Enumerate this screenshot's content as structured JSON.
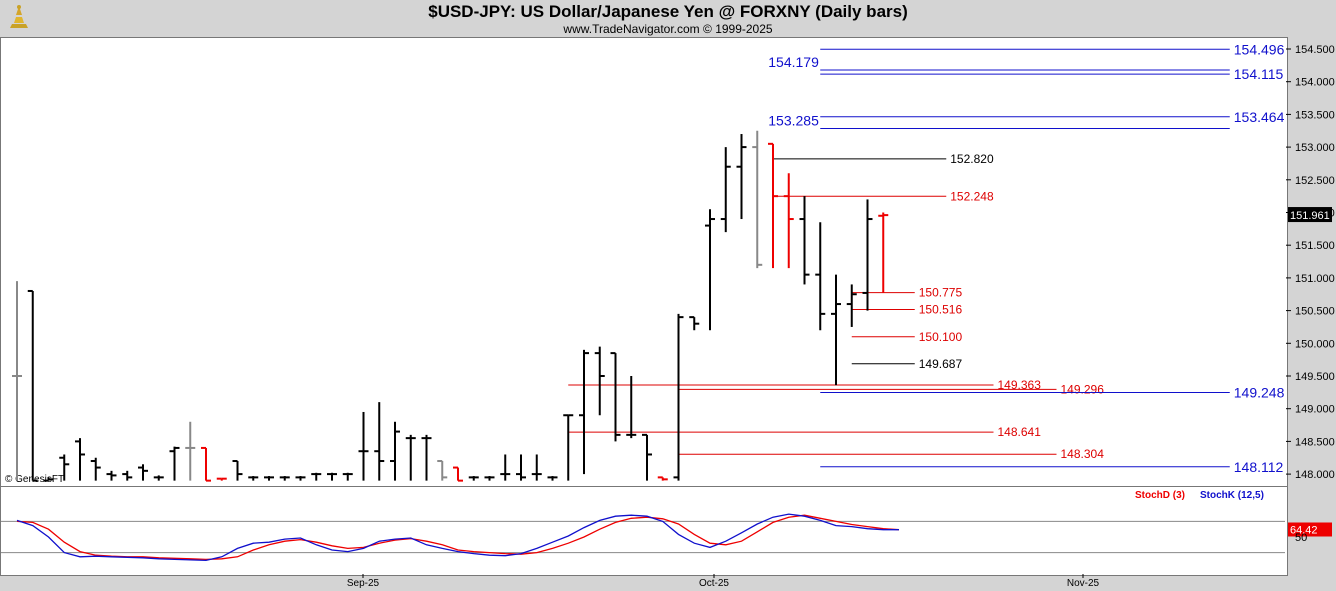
{
  "title": "$USD-JPY:  US Dollar/Japanese Yen @ FORXNY  (Daily bars)",
  "subtitle": "www.TradeNavigator.com © 1999-2025",
  "copyright": "© GenesisFT",
  "colors": {
    "up": "#000000",
    "down": "#ee0000",
    "blue_level": "#1010cc",
    "red_level": "#dd0000",
    "black_level": "#000000",
    "stochD": "#ee0000",
    "stochK": "#1010cc"
  },
  "chart_data": [
    {
      "type": "ohlc",
      "title": "$USD-JPY:  US Dollar/Japanese Yen @ FORXNY  (Daily bars)",
      "ylim": [
        147.9,
        154.7
      ],
      "y_ticks": [
        "154.500",
        "154.000",
        "153.500",
        "153.000",
        "152.500",
        "152.000",
        "151.500",
        "151.000",
        "150.500",
        "150.000",
        "149.500",
        "149.000",
        "148.500",
        "148.000"
      ],
      "x_ticks": [
        "Sep-25",
        "Oct-25",
        "Nov-25"
      ],
      "last_price": "151.961",
      "bars": [
        {
          "o": 149.5,
          "h": 150.95,
          "l": 147.9,
          "c": 149.5,
          "col": "gray"
        },
        {
          "o": 150.8,
          "h": 150.8,
          "l": 147.9,
          "c": 147.9,
          "col": "black"
        },
        {
          "o": 147.9,
          "h": 147.95,
          "l": 147.9,
          "c": 147.92,
          "col": "black"
        },
        {
          "o": 148.25,
          "h": 148.3,
          "l": 147.9,
          "c": 148.15,
          "col": "black"
        },
        {
          "o": 148.5,
          "h": 148.55,
          "l": 147.9,
          "c": 148.3,
          "col": "black"
        },
        {
          "o": 148.2,
          "h": 148.25,
          "l": 147.9,
          "c": 148.1,
          "col": "black"
        },
        {
          "o": 148.0,
          "h": 148.05,
          "l": 147.9,
          "c": 147.98,
          "col": "black"
        },
        {
          "o": 148.0,
          "h": 148.05,
          "l": 147.9,
          "c": 147.95,
          "col": "black"
        },
        {
          "o": 148.1,
          "h": 148.15,
          "l": 147.9,
          "c": 148.05,
          "col": "black"
        },
        {
          "o": 147.95,
          "h": 147.98,
          "l": 147.9,
          "c": 147.95,
          "col": "black"
        },
        {
          "o": 148.35,
          "h": 148.42,
          "l": 147.9,
          "c": 148.4,
          "col": "black"
        },
        {
          "o": 148.4,
          "h": 148.8,
          "l": 147.9,
          "c": 148.4,
          "col": "gray"
        },
        {
          "o": 148.4,
          "h": 148.4,
          "l": 147.9,
          "c": 147.9,
          "col": "red"
        },
        {
          "o": 147.93,
          "h": 147.93,
          "l": 147.9,
          "c": 147.93,
          "col": "red"
        },
        {
          "o": 148.2,
          "h": 148.2,
          "l": 147.9,
          "c": 148.0,
          "col": "black"
        },
        {
          "o": 147.95,
          "h": 147.97,
          "l": 147.9,
          "c": 147.95,
          "col": "black"
        },
        {
          "o": 147.95,
          "h": 147.97,
          "l": 147.9,
          "c": 147.95,
          "col": "black"
        },
        {
          "o": 147.95,
          "h": 147.97,
          "l": 147.9,
          "c": 147.95,
          "col": "black"
        },
        {
          "o": 147.95,
          "h": 147.97,
          "l": 147.9,
          "c": 147.95,
          "col": "black"
        },
        {
          "o": 148.0,
          "h": 148.02,
          "l": 147.9,
          "c": 148.0,
          "col": "black"
        },
        {
          "o": 148.0,
          "h": 148.02,
          "l": 147.9,
          "c": 148.0,
          "col": "black"
        },
        {
          "o": 148.0,
          "h": 148.02,
          "l": 147.9,
          "c": 148.0,
          "col": "black"
        },
        {
          "o": 148.35,
          "h": 148.95,
          "l": 147.9,
          "c": 148.35,
          "col": "black"
        },
        {
          "o": 148.35,
          "h": 149.1,
          "l": 147.9,
          "c": 148.2,
          "col": "black"
        },
        {
          "o": 148.2,
          "h": 148.8,
          "l": 147.9,
          "c": 148.65,
          "col": "black"
        },
        {
          "o": 148.55,
          "h": 148.6,
          "l": 147.9,
          "c": 148.55,
          "col": "black"
        },
        {
          "o": 148.55,
          "h": 148.6,
          "l": 147.9,
          "c": 148.55,
          "col": "black"
        },
        {
          "o": 148.2,
          "h": 148.2,
          "l": 147.9,
          "c": 147.95,
          "col": "gray"
        },
        {
          "o": 148.1,
          "h": 148.1,
          "l": 147.9,
          "c": 147.9,
          "col": "red"
        },
        {
          "o": 147.95,
          "h": 147.97,
          "l": 147.9,
          "c": 147.95,
          "col": "black"
        },
        {
          "o": 147.95,
          "h": 147.97,
          "l": 147.9,
          "c": 147.95,
          "col": "black"
        },
        {
          "o": 148.0,
          "h": 148.3,
          "l": 147.9,
          "c": 148.0,
          "col": "black"
        },
        {
          "o": 148.0,
          "h": 148.3,
          "l": 147.9,
          "c": 147.95,
          "col": "black"
        },
        {
          "o": 148.0,
          "h": 148.3,
          "l": 147.9,
          "c": 148.0,
          "col": "black"
        },
        {
          "o": 147.95,
          "h": 147.97,
          "l": 147.9,
          "c": 147.95,
          "col": "black"
        },
        {
          "o": 148.9,
          "h": 148.9,
          "l": 147.9,
          "c": 148.9,
          "col": "black"
        },
        {
          "o": 148.9,
          "h": 149.9,
          "l": 148.0,
          "c": 149.85,
          "col": "black"
        },
        {
          "o": 149.85,
          "h": 149.95,
          "l": 148.9,
          "c": 149.5,
          "col": "black"
        },
        {
          "o": 149.85,
          "h": 149.85,
          "l": 148.5,
          "c": 148.6,
          "col": "black"
        },
        {
          "o": 148.6,
          "h": 149.5,
          "l": 148.55,
          "c": 148.6,
          "col": "black"
        },
        {
          "o": 148.6,
          "h": 148.6,
          "l": 147.9,
          "c": 148.3,
          "col": "black"
        },
        {
          "o": 147.95,
          "h": 147.95,
          "l": 147.9,
          "c": 147.92,
          "col": "red"
        },
        {
          "o": 147.95,
          "h": 150.45,
          "l": 147.9,
          "c": 150.4,
          "col": "black"
        },
        {
          "o": 150.4,
          "h": 150.4,
          "l": 150.2,
          "c": 150.3,
          "col": "black"
        },
        {
          "o": 151.8,
          "h": 152.05,
          "l": 150.2,
          "c": 151.9,
          "col": "black"
        },
        {
          "o": 151.9,
          "h": 153.0,
          "l": 151.7,
          "c": 152.7,
          "col": "black"
        },
        {
          "o": 152.7,
          "h": 153.2,
          "l": 151.9,
          "c": 153.0,
          "col": "black"
        },
        {
          "o": 153.0,
          "h": 153.25,
          "l": 151.15,
          "c": 151.2,
          "col": "gray"
        },
        {
          "o": 153.05,
          "h": 153.05,
          "l": 151.15,
          "c": 152.25,
          "col": "red"
        },
        {
          "o": 152.25,
          "h": 152.6,
          "l": 151.15,
          "c": 151.9,
          "col": "red"
        },
        {
          "o": 151.9,
          "h": 152.25,
          "l": 150.9,
          "c": 151.05,
          "col": "black"
        },
        {
          "o": 151.05,
          "h": 151.85,
          "l": 150.2,
          "c": 150.45,
          "col": "black"
        },
        {
          "o": 150.45,
          "h": 151.05,
          "l": 149.36,
          "c": 150.6,
          "col": "black"
        },
        {
          "o": 150.6,
          "h": 150.9,
          "l": 150.25,
          "c": 150.75,
          "col": "black"
        },
        {
          "o": 150.77,
          "h": 152.2,
          "l": 150.5,
          "c": 151.9,
          "col": "black"
        },
        {
          "o": 151.95,
          "h": 152.0,
          "l": 150.77,
          "c": 151.96,
          "col": "red"
        }
      ],
      "levels": [
        {
          "label": "154.496",
          "v": 154.496,
          "x0": 51,
          "x1": 77,
          "color": "blue",
          "label_side": "right"
        },
        {
          "label": "154.115",
          "v": 154.115,
          "x0": 51,
          "x1": 77,
          "color": "blue",
          "label_side": "right"
        },
        {
          "label": "154.179",
          "v": 154.179,
          "x0": 51,
          "x1": 77,
          "color": "blue",
          "label_side": "left"
        },
        {
          "label": "153.464",
          "v": 153.464,
          "x0": 51,
          "x1": 77,
          "color": "blue",
          "label_side": "right"
        },
        {
          "label": "153.285",
          "v": 153.285,
          "x0": 51,
          "x1": 77,
          "color": "blue",
          "label_side": "left"
        },
        {
          "label": "152.820",
          "v": 152.82,
          "x0": 48,
          "x1": 59,
          "color": "black",
          "label_side": "right"
        },
        {
          "label": "152.248",
          "v": 152.248,
          "x0": 48,
          "x1": 59,
          "color": "red",
          "label_side": "right"
        },
        {
          "label": "150.775",
          "v": 150.775,
          "x0": 53,
          "x1": 57,
          "color": "red",
          "label_side": "right"
        },
        {
          "label": "150.516",
          "v": 150.516,
          "x0": 53,
          "x1": 57,
          "color": "red",
          "label_side": "right"
        },
        {
          "label": "150.100",
          "v": 150.1,
          "x0": 53,
          "x1": 57,
          "color": "red",
          "label_side": "right"
        },
        {
          "label": "149.687",
          "v": 149.687,
          "x0": 53,
          "x1": 57,
          "color": "black",
          "label_side": "right"
        },
        {
          "label": "149.363",
          "v": 149.363,
          "x0": 35,
          "x1": 62,
          "color": "red",
          "label_side": "right"
        },
        {
          "label": "149.296",
          "v": 149.296,
          "x0": 42,
          "x1": 66,
          "color": "red",
          "label_side": "right"
        },
        {
          "label": "149.248",
          "v": 149.248,
          "x0": 51,
          "x1": 77,
          "color": "blue",
          "label_side": "right"
        },
        {
          "label": "148.641",
          "v": 148.641,
          "x0": 35,
          "x1": 62,
          "color": "red",
          "label_side": "right"
        },
        {
          "label": "148.304",
          "v": 148.304,
          "x0": 42,
          "x1": 66,
          "color": "red",
          "label_side": "right"
        },
        {
          "label": "148.112",
          "v": 148.112,
          "x0": 51,
          "x1": 77,
          "color": "blue",
          "label_side": "right"
        }
      ]
    },
    {
      "type": "line",
      "series": [
        {
          "name": "StochD (3)",
          "values": [
            80,
            78,
            65,
            40,
            22,
            15,
            13,
            12,
            12,
            10,
            9,
            8,
            7,
            8,
            12,
            25,
            35,
            42,
            45,
            40,
            33,
            28,
            30,
            38,
            44,
            47,
            42,
            35,
            25,
            22,
            20,
            18,
            17,
            20,
            28,
            38,
            50,
            65,
            78,
            86,
            88,
            85,
            75,
            55,
            38,
            35,
            42,
            60,
            78,
            88,
            92,
            86,
            80,
            74,
            70,
            66,
            64
          ]
        },
        {
          "name": "StochK (12,5)",
          "values": [
            82,
            72,
            50,
            20,
            12,
            13,
            12,
            11,
            10,
            8,
            7,
            6,
            5,
            12,
            28,
            38,
            40,
            46,
            48,
            35,
            25,
            22,
            28,
            42,
            46,
            48,
            35,
            28,
            22,
            18,
            15,
            14,
            18,
            28,
            40,
            52,
            68,
            82,
            90,
            92,
            90,
            80,
            55,
            38,
            30,
            42,
            58,
            75,
            88,
            94,
            90,
            82,
            72,
            70,
            66,
            64,
            64
          ]
        }
      ],
      "ylim": [
        0,
        100
      ],
      "y_ticks": [
        "50"
      ],
      "last_value": "64.42",
      "legend": [
        "StochD (3)",
        "StochK (12,5)"
      ]
    }
  ]
}
